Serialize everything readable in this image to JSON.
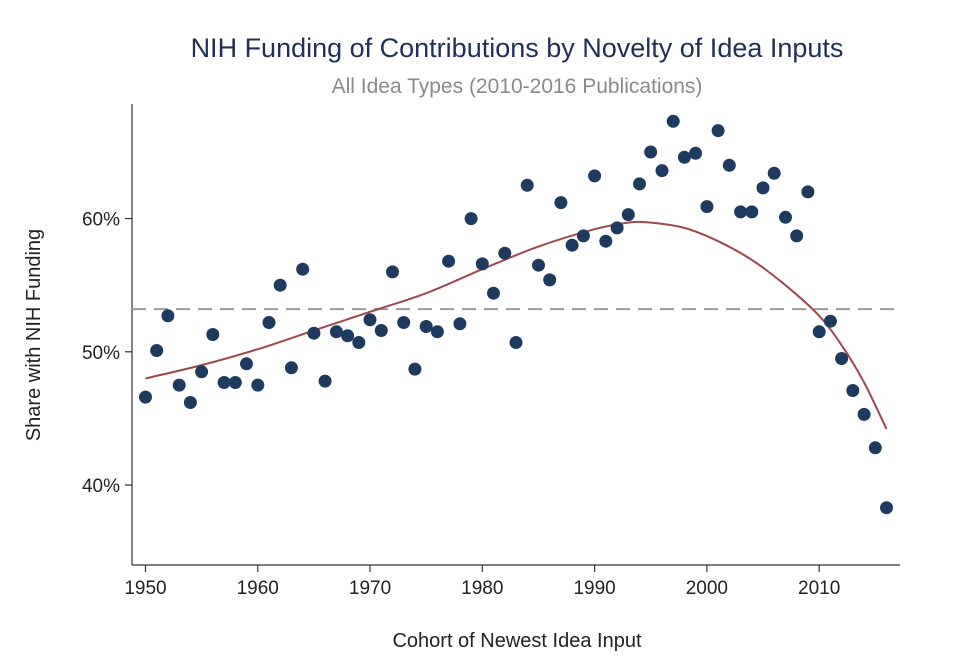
{
  "chart_data": {
    "type": "scatter",
    "title": "NIH Funding of Contributions by Novelty of Idea Inputs",
    "subtitle": "All Idea Types  (2010-2016 Publications)",
    "xlabel": "Cohort of Newest Idea Input",
    "ylabel": "Share with NIH Funding",
    "xlim": [
      1948.8,
      2017.2
    ],
    "ylim": [
      34.0,
      68.6
    ],
    "x_ticks": [
      1950,
      1960,
      1970,
      1980,
      1990,
      2000,
      2010
    ],
    "x_tick_labels": [
      "1950",
      "1960",
      "1970",
      "1980",
      "1990",
      "2000",
      "2010"
    ],
    "y_ticks": [
      40,
      50,
      60
    ],
    "y_tick_labels": [
      "40%",
      "50%",
      "60%"
    ],
    "grid": false,
    "reference_line": {
      "y": 53.2,
      "style": "dashed",
      "color": "#999999"
    },
    "marker_color": "#1f3a5f",
    "fit_color": "#9c4a4e",
    "points": [
      {
        "x": 1950,
        "y": 46.6
      },
      {
        "x": 1951,
        "y": 50.1
      },
      {
        "x": 1952,
        "y": 52.7
      },
      {
        "x": 1953,
        "y": 47.5
      },
      {
        "x": 1954,
        "y": 46.2
      },
      {
        "x": 1955,
        "y": 48.5
      },
      {
        "x": 1956,
        "y": 51.3
      },
      {
        "x": 1957,
        "y": 47.7
      },
      {
        "x": 1958,
        "y": 47.7
      },
      {
        "x": 1959,
        "y": 49.1
      },
      {
        "x": 1960,
        "y": 47.5
      },
      {
        "x": 1961,
        "y": 52.2
      },
      {
        "x": 1962,
        "y": 55.0
      },
      {
        "x": 1963,
        "y": 48.8
      },
      {
        "x": 1964,
        "y": 56.2
      },
      {
        "x": 1965,
        "y": 51.4
      },
      {
        "x": 1966,
        "y": 47.8
      },
      {
        "x": 1967,
        "y": 51.5
      },
      {
        "x": 1968,
        "y": 51.2
      },
      {
        "x": 1969,
        "y": 50.7
      },
      {
        "x": 1970,
        "y": 52.4
      },
      {
        "x": 1971,
        "y": 51.6
      },
      {
        "x": 1972,
        "y": 56.0
      },
      {
        "x": 1973,
        "y": 52.2
      },
      {
        "x": 1974,
        "y": 48.7
      },
      {
        "x": 1975,
        "y": 51.9
      },
      {
        "x": 1976,
        "y": 51.5
      },
      {
        "x": 1977,
        "y": 56.8
      },
      {
        "x": 1978,
        "y": 52.1
      },
      {
        "x": 1979,
        "y": 60.0
      },
      {
        "x": 1980,
        "y": 56.6
      },
      {
        "x": 1981,
        "y": 54.4
      },
      {
        "x": 1982,
        "y": 57.4
      },
      {
        "x": 1983,
        "y": 50.7
      },
      {
        "x": 1984,
        "y": 62.5
      },
      {
        "x": 1985,
        "y": 56.5
      },
      {
        "x": 1986,
        "y": 55.4
      },
      {
        "x": 1987,
        "y": 61.2
      },
      {
        "x": 1988,
        "y": 58.0
      },
      {
        "x": 1989,
        "y": 58.7
      },
      {
        "x": 1990,
        "y": 63.2
      },
      {
        "x": 1991,
        "y": 58.3
      },
      {
        "x": 1992,
        "y": 59.3
      },
      {
        "x": 1993,
        "y": 60.3
      },
      {
        "x": 1994,
        "y": 62.6
      },
      {
        "x": 1995,
        "y": 65.0
      },
      {
        "x": 1996,
        "y": 63.6
      },
      {
        "x": 1997,
        "y": 67.3
      },
      {
        "x": 1998,
        "y": 64.6
      },
      {
        "x": 1999,
        "y": 64.9
      },
      {
        "x": 2000,
        "y": 60.9
      },
      {
        "x": 2001,
        "y": 66.6
      },
      {
        "x": 2002,
        "y": 64.0
      },
      {
        "x": 2003,
        "y": 60.5
      },
      {
        "x": 2004,
        "y": 60.5
      },
      {
        "x": 2005,
        "y": 62.3
      },
      {
        "x": 2006,
        "y": 63.4
      },
      {
        "x": 2007,
        "y": 60.1
      },
      {
        "x": 2008,
        "y": 58.7
      },
      {
        "x": 2009,
        "y": 62.0
      },
      {
        "x": 2010,
        "y": 51.5
      },
      {
        "x": 2011,
        "y": 52.3
      },
      {
        "x": 2012,
        "y": 49.5
      },
      {
        "x": 2013,
        "y": 47.1
      },
      {
        "x": 2014,
        "y": 45.3
      },
      {
        "x": 2015,
        "y": 42.8
      },
      {
        "x": 2016,
        "y": 38.3
      }
    ],
    "fit_curve": [
      {
        "x": 1950,
        "y": 48.0
      },
      {
        "x": 1955,
        "y": 49.0
      },
      {
        "x": 1960,
        "y": 50.2
      },
      {
        "x": 1965,
        "y": 51.6
      },
      {
        "x": 1970,
        "y": 53.0
      },
      {
        "x": 1975,
        "y": 54.4
      },
      {
        "x": 1980,
        "y": 56.2
      },
      {
        "x": 1985,
        "y": 57.9
      },
      {
        "x": 1990,
        "y": 59.2
      },
      {
        "x": 1993,
        "y": 59.7
      },
      {
        "x": 1995,
        "y": 59.7
      },
      {
        "x": 1998,
        "y": 59.3
      },
      {
        "x": 2001,
        "y": 58.3
      },
      {
        "x": 2004,
        "y": 56.9
      },
      {
        "x": 2007,
        "y": 55.0
      },
      {
        "x": 2010,
        "y": 52.7
      },
      {
        "x": 2012,
        "y": 50.5
      },
      {
        "x": 2014,
        "y": 47.7
      },
      {
        "x": 2016,
        "y": 44.2
      }
    ]
  }
}
